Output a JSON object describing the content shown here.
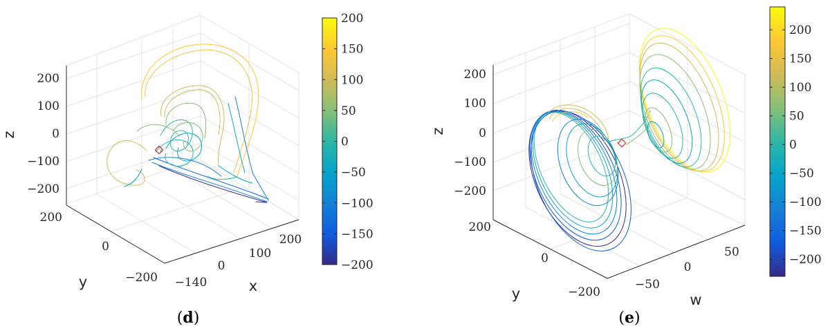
{
  "chart_data": [
    {
      "type": "line",
      "subtype": "3d-trajectory",
      "caption_letter": "d",
      "xlabel": "x",
      "ylabel": "y",
      "zlabel": "z",
      "x_ticks": [
        "−140",
        "0",
        "100",
        "200"
      ],
      "y_ticks": [
        "200",
        "0",
        "−200"
      ],
      "z_ticks": [
        "200",
        "100",
        "0",
        "−100",
        "−200"
      ],
      "colorbar": {
        "min": -200,
        "max": 200,
        "ticks": [
          "200",
          "150",
          "100",
          "50",
          "0",
          "−50",
          "−100",
          "−150",
          "−200"
        ]
      },
      "color_variable": "z",
      "grid": true
    },
    {
      "type": "line",
      "subtype": "3d-trajectory",
      "caption_letter": "e",
      "xlabel": "w",
      "ylabel": "y",
      "zlabel": "z",
      "x_ticks": [
        "−50",
        "0",
        "50"
      ],
      "y_ticks": [
        "200",
        "0",
        "−200"
      ],
      "z_ticks": [
        "200",
        "100",
        "0",
        "−100",
        "−200"
      ],
      "colorbar": {
        "min": -230,
        "max": 240,
        "ticks": [
          "200",
          "150",
          "100",
          "50",
          "0",
          "−50",
          "−100",
          "−150",
          "−200"
        ]
      },
      "color_variable": "z",
      "grid": true
    }
  ],
  "colors": {
    "parula": [
      "#352a87",
      "#0f5cdd",
      "#1481d6",
      "#06a4ca",
      "#2eb7a4",
      "#87bf77",
      "#d1bb59",
      "#fec832",
      "#f9fb0e"
    ],
    "marker": "#e03030"
  }
}
